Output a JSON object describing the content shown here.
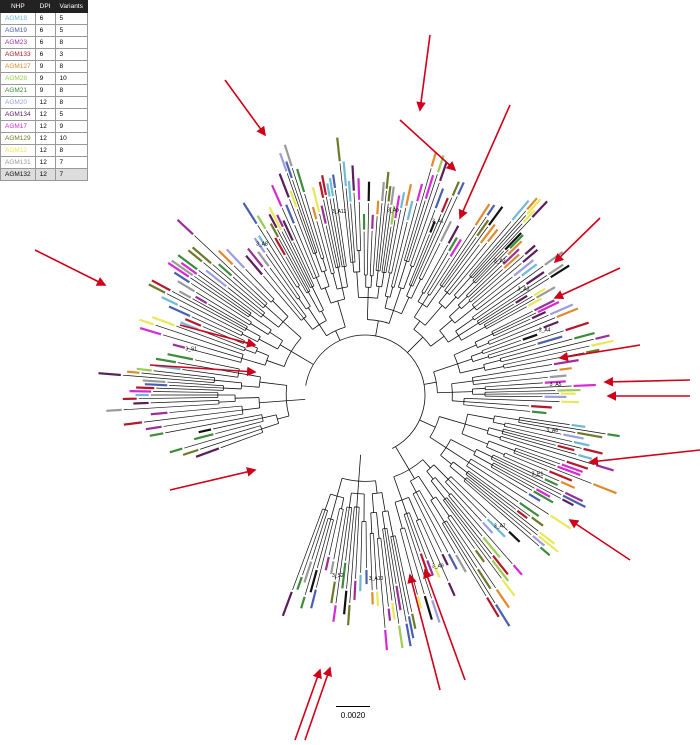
{
  "legend": {
    "headers": [
      "NHP",
      "DPI",
      "Variants"
    ],
    "rows": [
      {
        "nhp": "AGM18",
        "dpi": "6",
        "variants": "5",
        "color": "#6fb9d6",
        "highlight": false
      },
      {
        "nhp": "AGM19",
        "dpi": "6",
        "variants": "5",
        "color": "#4a5fb0",
        "highlight": false
      },
      {
        "nhp": "AGM23",
        "dpi": "6",
        "variants": "8",
        "color": "#9a2f9a",
        "highlight": false
      },
      {
        "nhp": "AGM133",
        "dpi": "6",
        "variants": "3",
        "color": "#b5182b",
        "highlight": false
      },
      {
        "nhp": "AGM127",
        "dpi": "9",
        "variants": "8",
        "color": "#e08a2e",
        "highlight": false
      },
      {
        "nhp": "AGM28",
        "dpi": "9",
        "variants": "10",
        "color": "#9ccc52",
        "highlight": false
      },
      {
        "nhp": "AGM21",
        "dpi": "9",
        "variants": "8",
        "color": "#3c8c3c",
        "highlight": false
      },
      {
        "nhp": "AGM20",
        "dpi": "12",
        "variants": "8",
        "color": "#9a9ee0",
        "highlight": false
      },
      {
        "nhp": "AGM134",
        "dpi": "12",
        "variants": "5",
        "color": "#5a1f5a",
        "highlight": false
      },
      {
        "nhp": "AGM17",
        "dpi": "12",
        "variants": "9",
        "color": "#d62ad6",
        "highlight": false
      },
      {
        "nhp": "AGM129",
        "dpi": "12",
        "variants": "10",
        "color": "#6b7a2a",
        "highlight": false
      },
      {
        "nhp": "AGM12",
        "dpi": "12",
        "variants": "8",
        "color": "#e8e85a",
        "highlight": false
      },
      {
        "nhp": "AGM131",
        "dpi": "12",
        "variants": "7",
        "color": "#9a9a9a",
        "highlight": false
      },
      {
        "nhp": "AGM132",
        "dpi": "12",
        "variants": "7",
        "color": "#111111",
        "highlight": true
      }
    ]
  },
  "scale_bar": {
    "label": "0.0020"
  },
  "node_labels": [
    "3_S1",
    "3_A8",
    "3_A11",
    "3_Ap",
    "3_A1",
    "3_A2",
    "3_A4",
    "3_A5",
    "3_A6",
    "3_E1",
    "3_A7",
    "3_A9",
    "3_A10",
    "3_S2",
    "3_A3"
  ],
  "colors": {
    "arrow": "#d0001a",
    "branch": "#111111"
  }
}
